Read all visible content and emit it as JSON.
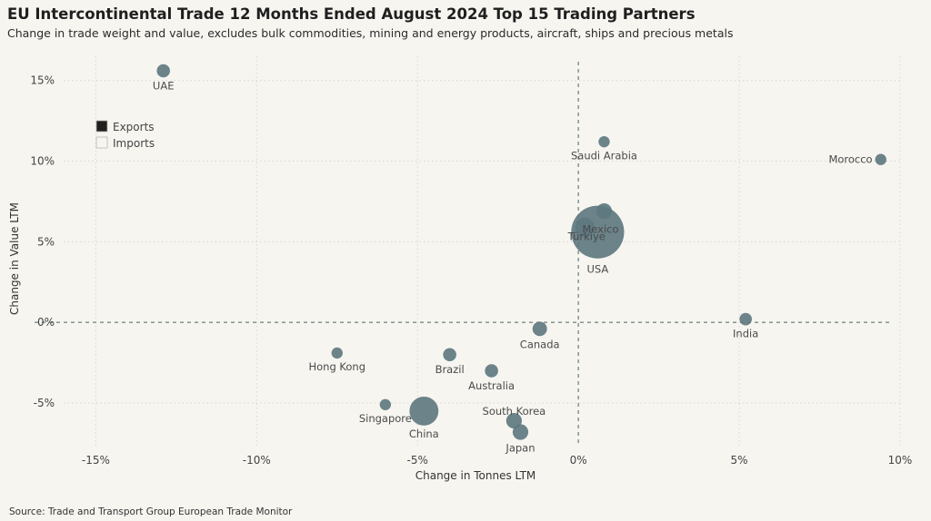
{
  "title": "EU Intercontinental Trade 12 Months Ended August 2024 Top 15 Trading Partners",
  "subtitle": "Change in trade weight and value, excludes bulk commodities, mining and energy products, aircraft, ships and precious metals",
  "source": "Source: Trade and Transport Group European Trade Monitor",
  "colors": {
    "bubble": "#5e7880",
    "zero_line": "#8a9a98",
    "grid": "#d9d7d1",
    "background": "#f7f5f0"
  },
  "chart_data": {
    "type": "scatter",
    "xlabel": "Change in Tonnes LTM",
    "ylabel": "Change in Value LTM",
    "xlim": [
      -0.16,
      0.1
    ],
    "ylim": [
      -0.077,
      0.165
    ],
    "xticks": [
      -0.15,
      -0.1,
      -0.05,
      0.0,
      0.05,
      0.1
    ],
    "xtick_labels": [
      "-15%",
      "-10%",
      "-5%",
      "0%",
      "5%",
      "10%"
    ],
    "yticks": [
      -0.05,
      0.0,
      0.05,
      0.1,
      0.15
    ],
    "ytick_labels": [
      "-5%",
      "0%",
      "5%",
      "10%",
      "15%"
    ],
    "grid": true,
    "bubble_size_meaning": "trade value",
    "legend": {
      "placement": "top-left",
      "entries": [
        {
          "name": "Exports",
          "swatch": "#1f1f1f"
        },
        {
          "name": "Imports",
          "swatch": "#f7f5f0"
        }
      ]
    },
    "points": [
      {
        "name": "UAE",
        "x": -0.129,
        "y": 0.156,
        "size": 2.5,
        "label_pos": "below"
      },
      {
        "name": "Saudi Arabia",
        "x": 0.008,
        "y": 0.112,
        "size": 1.8,
        "label_pos": "below"
      },
      {
        "name": "Morocco",
        "x": 0.094,
        "y": 0.101,
        "size": 1.8,
        "label_pos": "left"
      },
      {
        "name": "Mexico",
        "x": 0.008,
        "y": 0.069,
        "size": 3.5,
        "label_pos": "center"
      },
      {
        "name": "Türkiye",
        "x": 0.002,
        "y": 0.059,
        "size": 5.5,
        "label_pos": "center"
      },
      {
        "name": "USA",
        "x": 0.006,
        "y": 0.056,
        "size": 40,
        "label_pos": "below"
      },
      {
        "name": "India",
        "x": 0.052,
        "y": 0.002,
        "size": 2.2,
        "label_pos": "below"
      },
      {
        "name": "Canada",
        "x": -0.012,
        "y": -0.004,
        "size": 3.0,
        "label_pos": "below"
      },
      {
        "name": "Hong Kong",
        "x": -0.075,
        "y": -0.019,
        "size": 1.8,
        "label_pos": "below"
      },
      {
        "name": "Brazil",
        "x": -0.04,
        "y": -0.02,
        "size": 2.5,
        "label_pos": "below"
      },
      {
        "name": "Australia",
        "x": -0.027,
        "y": -0.03,
        "size": 2.5,
        "label_pos": "below"
      },
      {
        "name": "Singapore",
        "x": -0.06,
        "y": -0.051,
        "size": 1.8,
        "label_pos": "below"
      },
      {
        "name": "China",
        "x": -0.048,
        "y": -0.055,
        "size": 12,
        "label_pos": "below"
      },
      {
        "name": "South Korea",
        "x": -0.02,
        "y": -0.061,
        "size": 3.5,
        "label_pos": "above"
      },
      {
        "name": "Japan",
        "x": -0.018,
        "y": -0.068,
        "size": 3.5,
        "label_pos": "below"
      }
    ]
  }
}
